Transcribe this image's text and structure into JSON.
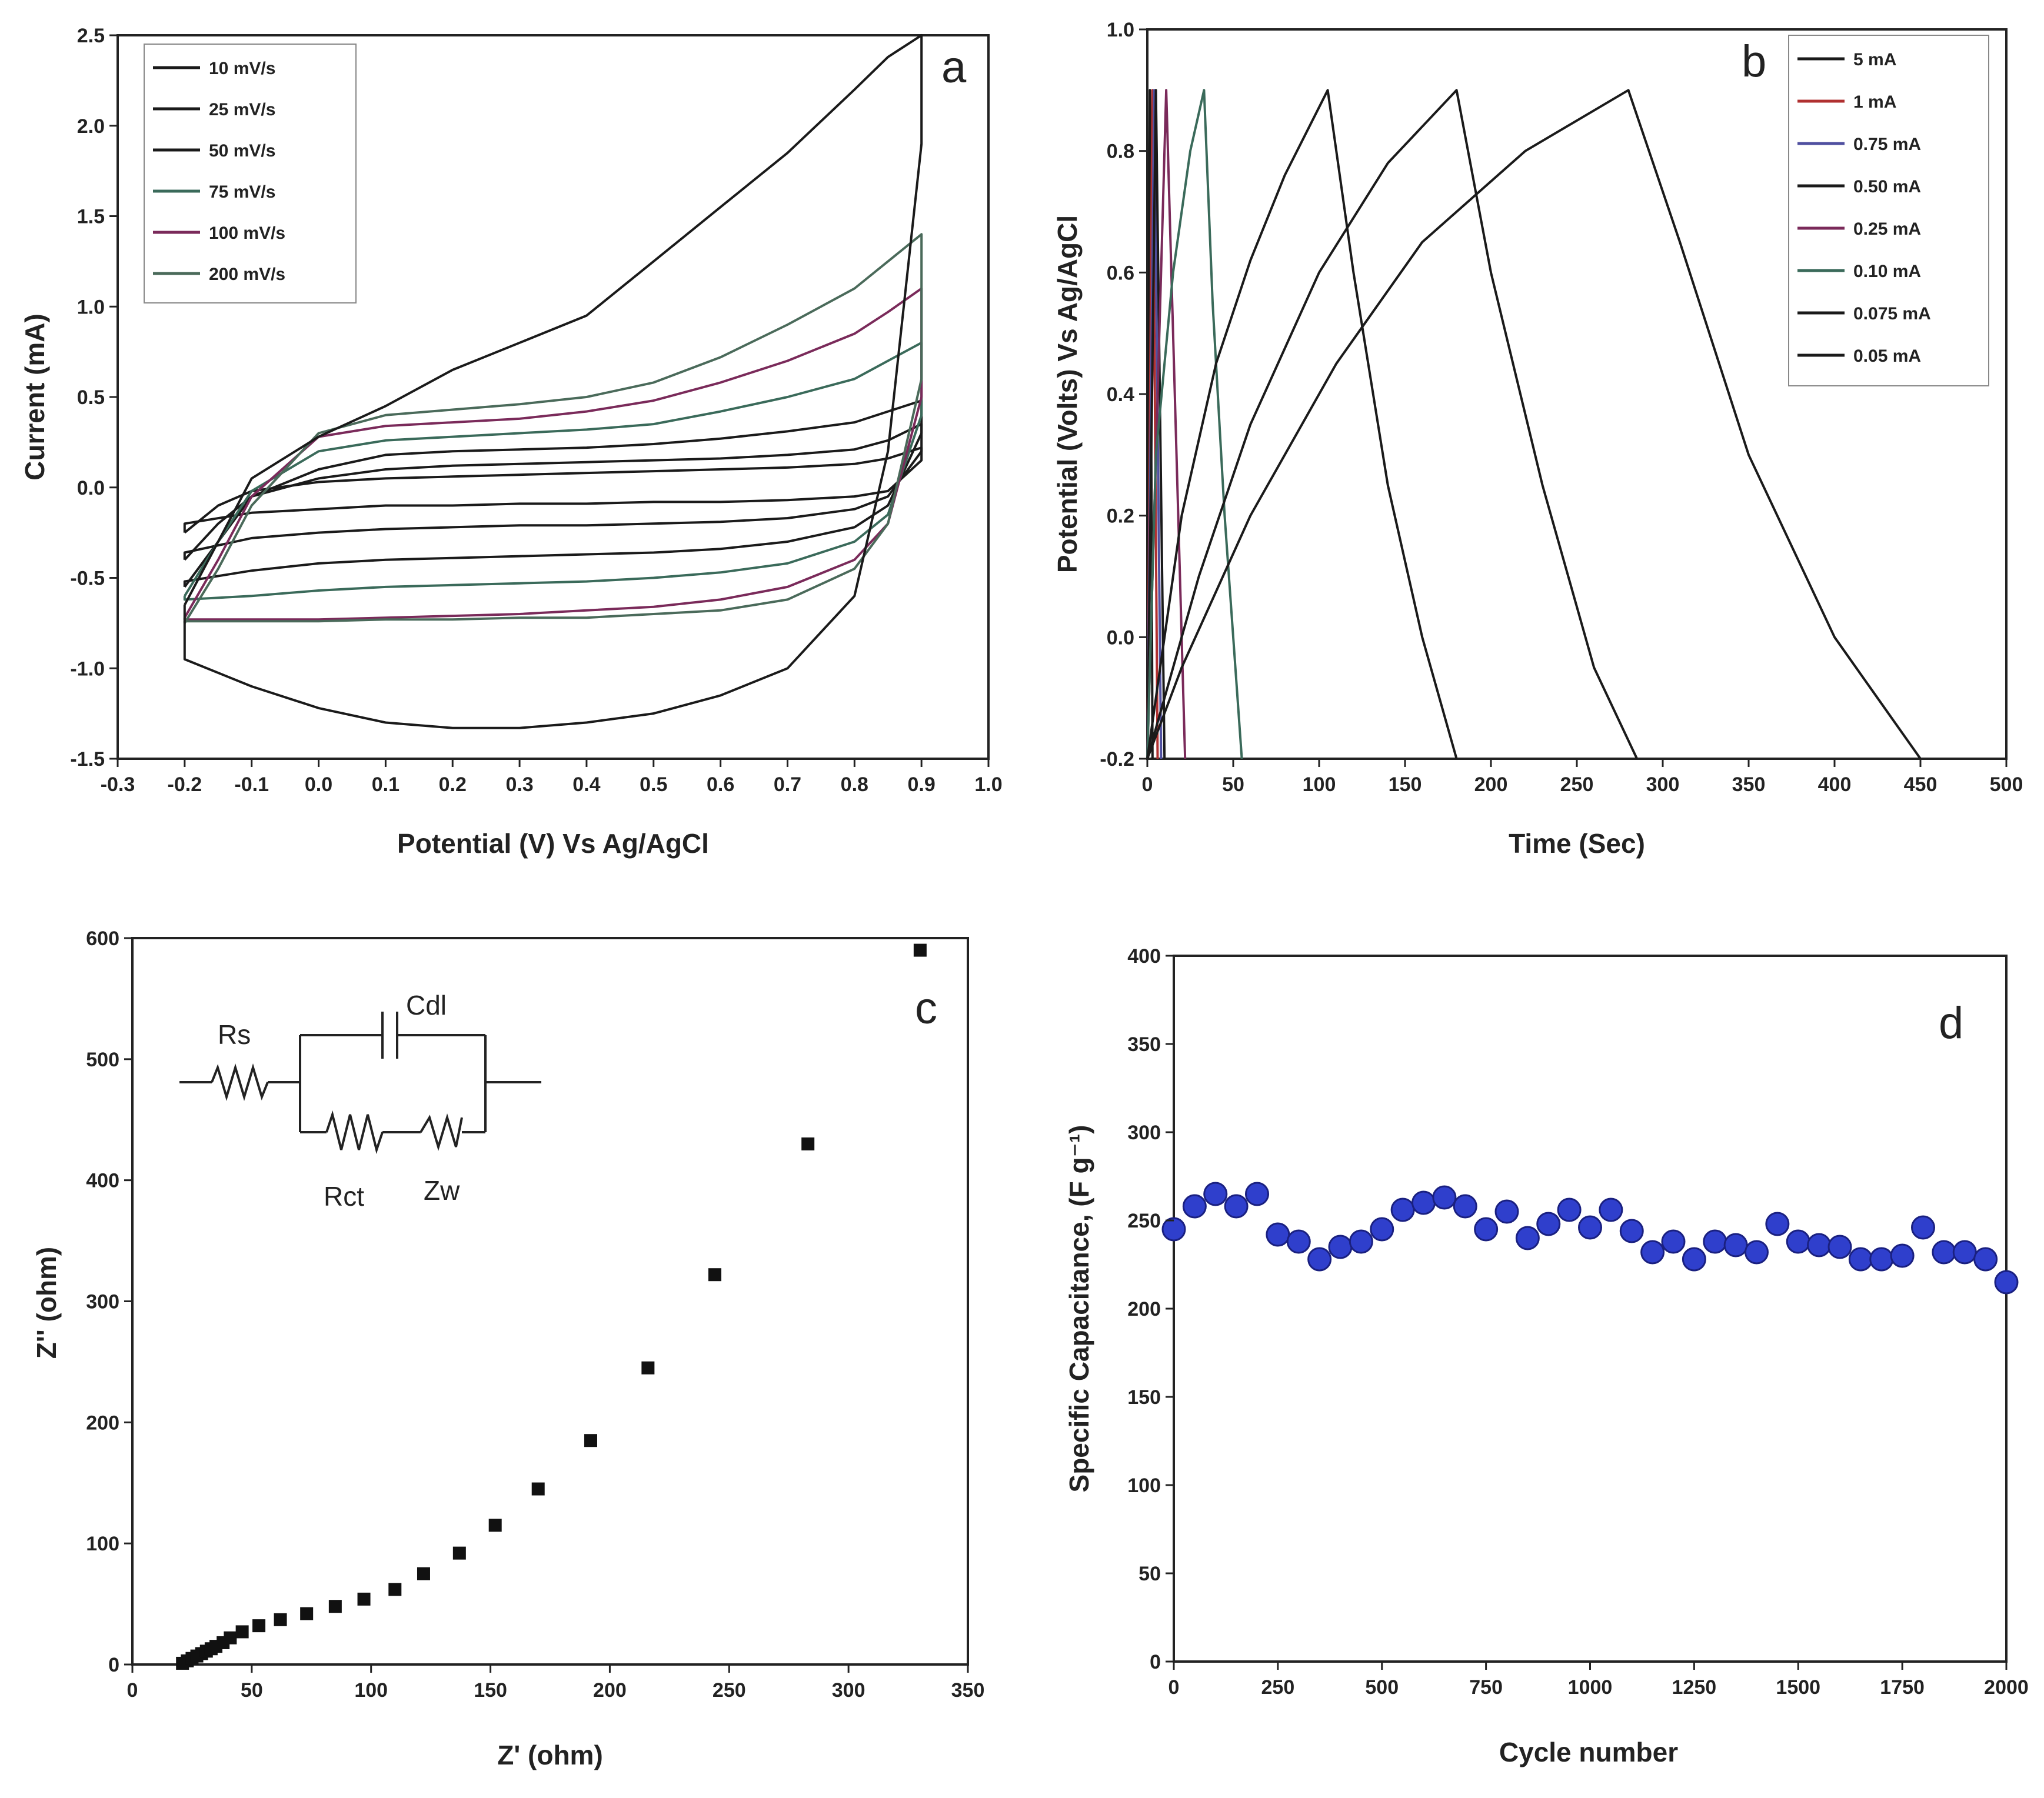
{
  "chart_data": [
    {
      "panel": "a",
      "type": "line",
      "xlabel": "Potential (V) Vs Ag/AgCl",
      "ylabel": "Current (mA)",
      "xlim": [
        -0.3,
        1.0
      ],
      "ylim": [
        -1.5,
        2.5
      ],
      "xticks": [
        "-0.3",
        "-0.2",
        "-0.1",
        "0.0",
        "0.1",
        "0.2",
        "0.3",
        "0.4",
        "0.5",
        "0.6",
        "0.7",
        "0.8",
        "0.9",
        "1.0"
      ],
      "yticks": [
        "-1.5",
        "-1.0",
        "-0.5",
        "0.0",
        "0.5",
        "1.0",
        "1.5",
        "2.0",
        "2.5"
      ],
      "legend_position": "top-left",
      "series": [
        {
          "name": "10 mV/s",
          "color": "#1a1a1a",
          "x": [
            -0.2,
            -0.15,
            -0.1,
            0.0,
            0.1,
            0.2,
            0.3,
            0.4,
            0.5,
            0.6,
            0.7,
            0.8,
            0.85,
            0.9,
            0.9,
            0.85,
            0.8,
            0.7,
            0.6,
            0.5,
            0.4,
            0.3,
            0.2,
            0.1,
            0.0,
            -0.1,
            -0.2,
            -0.2
          ],
          "y": [
            -0.25,
            -0.1,
            -0.02,
            0.03,
            0.05,
            0.06,
            0.07,
            0.08,
            0.09,
            0.1,
            0.11,
            0.13,
            0.16,
            0.22,
            0.15,
            -0.02,
            -0.05,
            -0.07,
            -0.08,
            -0.08,
            -0.09,
            -0.09,
            -0.1,
            -0.1,
            -0.12,
            -0.14,
            -0.2,
            -0.25
          ]
        },
        {
          "name": "25 mV/s",
          "color": "#1a1a1a",
          "x": [
            -0.2,
            -0.15,
            -0.1,
            0.0,
            0.1,
            0.2,
            0.3,
            0.4,
            0.5,
            0.6,
            0.7,
            0.8,
            0.85,
            0.9,
            0.9,
            0.85,
            0.8,
            0.7,
            0.6,
            0.5,
            0.4,
            0.3,
            0.2,
            0.1,
            0.0,
            -0.1,
            -0.2,
            -0.2
          ],
          "y": [
            -0.4,
            -0.2,
            -0.05,
            0.05,
            0.1,
            0.12,
            0.13,
            0.14,
            0.15,
            0.16,
            0.18,
            0.21,
            0.26,
            0.35,
            0.2,
            -0.05,
            -0.12,
            -0.17,
            -0.19,
            -0.2,
            -0.21,
            -0.21,
            -0.22,
            -0.23,
            -0.25,
            -0.28,
            -0.36,
            -0.4
          ]
        },
        {
          "name": "50 mV/s",
          "color": "#1a1a1a",
          "x": [
            -0.2,
            -0.15,
            -0.1,
            0.0,
            0.1,
            0.2,
            0.3,
            0.4,
            0.5,
            0.6,
            0.7,
            0.8,
            0.85,
            0.9,
            0.9,
            0.85,
            0.8,
            0.7,
            0.6,
            0.5,
            0.4,
            0.3,
            0.2,
            0.1,
            0.0,
            -0.1,
            -0.2,
            -0.2
          ],
          "y": [
            -0.55,
            -0.3,
            -0.05,
            0.1,
            0.18,
            0.2,
            0.21,
            0.22,
            0.24,
            0.27,
            0.31,
            0.36,
            0.42,
            0.48,
            0.3,
            -0.1,
            -0.22,
            -0.3,
            -0.34,
            -0.36,
            -0.37,
            -0.38,
            -0.39,
            -0.4,
            -0.42,
            -0.46,
            -0.52,
            -0.55
          ]
        },
        {
          "name": "75 mV/s",
          "color": "#3a6a5a",
          "x": [
            -0.2,
            -0.15,
            -0.1,
            0.0,
            0.1,
            0.2,
            0.3,
            0.4,
            0.5,
            0.6,
            0.7,
            0.8,
            0.85,
            0.9,
            0.9,
            0.85,
            0.8,
            0.7,
            0.6,
            0.5,
            0.4,
            0.3,
            0.2,
            0.1,
            0.0,
            -0.1,
            -0.2,
            -0.2
          ],
          "y": [
            -0.6,
            -0.3,
            -0.02,
            0.2,
            0.26,
            0.28,
            0.3,
            0.32,
            0.35,
            0.42,
            0.5,
            0.6,
            0.7,
            0.8,
            0.4,
            -0.15,
            -0.3,
            -0.42,
            -0.47,
            -0.5,
            -0.52,
            -0.53,
            -0.54,
            -0.55,
            -0.57,
            -0.6,
            -0.62,
            -0.6
          ]
        },
        {
          "name": "100 mV/s",
          "color": "#7a2a5a",
          "x": [
            -0.2,
            -0.15,
            -0.1,
            0.0,
            0.1,
            0.2,
            0.3,
            0.4,
            0.5,
            0.6,
            0.7,
            0.8,
            0.85,
            0.9,
            0.9,
            0.85,
            0.8,
            0.7,
            0.6,
            0.5,
            0.4,
            0.3,
            0.2,
            0.1,
            0.0,
            -0.1,
            -0.2,
            -0.2
          ],
          "y": [
            -0.72,
            -0.4,
            -0.05,
            0.28,
            0.34,
            0.36,
            0.38,
            0.42,
            0.48,
            0.58,
            0.7,
            0.85,
            0.97,
            1.1,
            0.5,
            -0.2,
            -0.4,
            -0.55,
            -0.62,
            -0.66,
            -0.68,
            -0.7,
            -0.71,
            -0.72,
            -0.73,
            -0.73,
            -0.73,
            -0.72
          ]
        },
        {
          "name": "200 mV/s",
          "color": "#4a6a5a",
          "x": [
            -0.2,
            -0.15,
            -0.1,
            0.0,
            0.1,
            0.2,
            0.3,
            0.4,
            0.5,
            0.6,
            0.7,
            0.8,
            0.85,
            0.9,
            0.9,
            0.85,
            0.8,
            0.7,
            0.6,
            0.5,
            0.4,
            0.3,
            0.2,
            0.1,
            0.0,
            -0.1,
            -0.2,
            -0.2
          ],
          "y": [
            -0.75,
            -0.45,
            -0.1,
            0.3,
            0.4,
            0.43,
            0.46,
            0.5,
            0.58,
            0.72,
            0.9,
            1.1,
            1.25,
            1.4,
            0.6,
            -0.2,
            -0.45,
            -0.62,
            -0.68,
            -0.7,
            -0.72,
            -0.72,
            -0.73,
            -0.73,
            -0.74,
            -0.74,
            -0.74,
            -0.75
          ]
        },
        {
          "name": "",
          "color": "#1a1a1a",
          "x": [
            -0.2,
            -0.1,
            0.0,
            0.1,
            0.2,
            0.3,
            0.4,
            0.5,
            0.6,
            0.7,
            0.8,
            0.85,
            0.9,
            0.9,
            0.85,
            0.8,
            0.7,
            0.6,
            0.5,
            0.4,
            0.3,
            0.2,
            0.1,
            0.0,
            -0.1,
            -0.2,
            -0.2
          ],
          "y": [
            -0.65,
            0.05,
            0.28,
            0.45,
            0.65,
            0.8,
            0.95,
            1.25,
            1.55,
            1.85,
            2.2,
            2.38,
            2.5,
            1.9,
            0.2,
            -0.6,
            -1.0,
            -1.15,
            -1.25,
            -1.3,
            -1.33,
            -1.33,
            -1.3,
            -1.22,
            -1.1,
            -0.95,
            -0.65
          ]
        }
      ]
    },
    {
      "panel": "b",
      "type": "line",
      "xlabel": "Time (Sec)",
      "ylabel": "Potential (Volts) Vs Ag/AgCl",
      "xlim": [
        0,
        500
      ],
      "ylim": [
        -0.2,
        1.0
      ],
      "xticks": [
        "0",
        "50",
        "100",
        "150",
        "200",
        "250",
        "300",
        "350",
        "400",
        "450",
        "500"
      ],
      "yticks": [
        "-0.2",
        "0.0",
        "0.2",
        "0.4",
        "0.6",
        "0.8",
        "1.0"
      ],
      "legend_position": "top-right",
      "series": [
        {
          "name": "5 mA",
          "color": "#1a1a1a",
          "x": [
            0,
            1.5,
            3
          ],
          "y": [
            -0.2,
            0.9,
            -0.2
          ]
        },
        {
          "name": "1 mA",
          "color": "#b03030",
          "x": [
            0,
            3,
            6
          ],
          "y": [
            -0.2,
            0.9,
            -0.2
          ]
        },
        {
          "name": "0.75 mA",
          "color": "#5050a0",
          "x": [
            0,
            4,
            8
          ],
          "y": [
            -0.2,
            0.9,
            -0.2
          ]
        },
        {
          "name": "0.50 mA",
          "color": "#1a1a1a",
          "x": [
            0,
            5,
            10
          ],
          "y": [
            -0.2,
            0.9,
            -0.2
          ]
        },
        {
          "name": "0.25 mA",
          "color": "#7a2a5a",
          "x": [
            0,
            11,
            22
          ],
          "y": [
            -0.2,
            0.9,
            -0.2
          ]
        },
        {
          "name": "0.10 mA",
          "color": "#3a6a5a",
          "x": [
            0,
            5,
            15,
            25,
            33,
            38,
            45,
            55
          ],
          "y": [
            -0.2,
            0.3,
            0.6,
            0.8,
            0.9,
            0.55,
            0.2,
            -0.2
          ]
        },
        {
          "name": "0.075 mA",
          "color": "#1a1a1a",
          "x": [
            0,
            5,
            20,
            40,
            60,
            80,
            105,
            120,
            140,
            160,
            180
          ],
          "y": [
            -0.2,
            -0.1,
            0.2,
            0.45,
            0.62,
            0.76,
            0.9,
            0.6,
            0.25,
            0.0,
            -0.2
          ]
        },
        {
          "name": "0.05 mA",
          "color": "#1a1a1a",
          "x": [
            0,
            10,
            30,
            60,
            100,
            140,
            180,
            200,
            230,
            260,
            285
          ],
          "y": [
            -0.2,
            -0.1,
            0.1,
            0.35,
            0.6,
            0.78,
            0.9,
            0.6,
            0.25,
            -0.05,
            -0.2
          ]
        },
        {
          "name": "",
          "color": "#1a1a1a",
          "x": [
            0,
            20,
            60,
            110,
            160,
            220,
            280,
            310,
            350,
            400,
            450
          ],
          "y": [
            -0.2,
            -0.05,
            0.2,
            0.45,
            0.65,
            0.8,
            0.9,
            0.65,
            0.3,
            0.0,
            -0.2
          ]
        }
      ]
    },
    {
      "panel": "c",
      "type": "scatter",
      "xlabel": "Z' (ohm)",
      "ylabel": "Z'' (ohm)",
      "xlim": [
        0,
        350
      ],
      "ylim": [
        0,
        600
      ],
      "xticks": [
        "0",
        "50",
        "100",
        "150",
        "200",
        "250",
        "300",
        "350"
      ],
      "yticks": [
        "0",
        "100",
        "200",
        "300",
        "400",
        "500",
        "600"
      ],
      "x": [
        21,
        23,
        25,
        27,
        29,
        31,
        33,
        35,
        38,
        41,
        46,
        53,
        62,
        73,
        85,
        97,
        110,
        122,
        137,
        152,
        170,
        192,
        216,
        244,
        283,
        330
      ],
      "y": [
        1,
        3,
        5,
        7,
        9,
        11,
        13,
        15,
        18,
        22,
        27,
        32,
        37,
        42,
        48,
        54,
        62,
        75,
        92,
        115,
        145,
        185,
        245,
        322,
        430,
        590
      ],
      "inset": {
        "labels": [
          "Rs",
          "Cdl",
          "Rct",
          "Zw"
        ]
      }
    },
    {
      "panel": "d",
      "type": "scatter",
      "xlabel": "Cycle number",
      "ylabel": "Specific Capacitance, (F g⁻¹)",
      "xlim": [
        0,
        2000
      ],
      "ylim": [
        0,
        400
      ],
      "xticks": [
        "0",
        "250",
        "500",
        "750",
        "1000",
        "1250",
        "1500",
        "1750",
        "2000"
      ],
      "yticks": [
        "0",
        "50",
        "100",
        "150",
        "200",
        "250",
        "300",
        "350",
        "400"
      ],
      "marker_color": "#2f3fcc",
      "x": [
        0,
        50,
        100,
        150,
        200,
        250,
        300,
        350,
        400,
        450,
        500,
        550,
        600,
        650,
        700,
        750,
        800,
        850,
        900,
        950,
        1000,
        1050,
        1100,
        1150,
        1200,
        1250,
        1300,
        1350,
        1400,
        1450,
        1500,
        1550,
        1600,
        1650,
        1700,
        1750,
        1800,
        1850,
        1900,
        1950,
        2000
      ],
      "y": [
        245,
        258,
        265,
        258,
        265,
        242,
        238,
        228,
        235,
        238,
        245,
        256,
        260,
        263,
        258,
        245,
        255,
        240,
        248,
        256,
        246,
        256,
        244,
        232,
        238,
        228,
        238,
        236,
        232,
        248,
        238,
        236,
        235,
        228,
        228,
        230,
        246,
        232,
        232,
        228,
        215
      ]
    }
  ],
  "panel_labels": [
    "a",
    "b",
    "c",
    "d"
  ]
}
